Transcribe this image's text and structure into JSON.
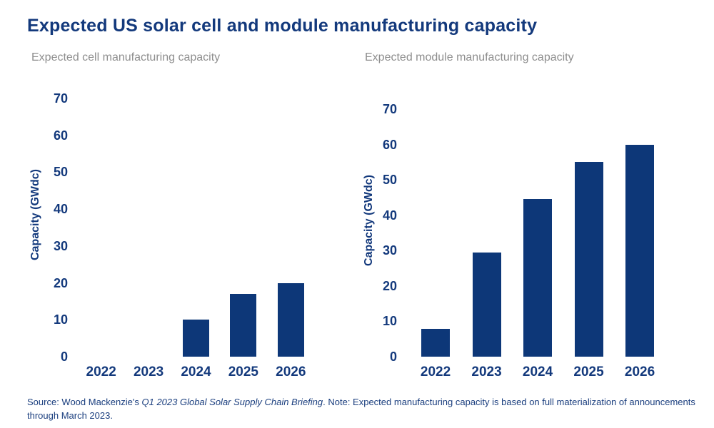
{
  "title": "Expected US solar cell and module manufacturing capacity",
  "colors": {
    "navy": "#13397C",
    "bar": "#0D3778",
    "subtitle_gray": "#8E8E8E"
  },
  "footer": {
    "source_prefix": "Source: Wood Mackenzie's ",
    "source_italic": "Q1 2023 Global Solar Supply Chain Briefing",
    "source_suffix": ". Note: Expected manufacturing capacity is based on full materialization of announcements through March 2023."
  },
  "chart_data": [
    {
      "type": "bar",
      "title": "Expected cell manufacturing capacity",
      "categories": [
        "2022",
        "2023",
        "2024",
        "2025",
        "2026"
      ],
      "values": [
        0,
        0,
        10,
        17,
        20
      ],
      "xlabel": "",
      "ylabel": "Capacity (GWdc)",
      "ylim": [
        0,
        70
      ],
      "ytick_step": 10,
      "grid": false,
      "legend": "none",
      "bar_color": "#0D3778"
    },
    {
      "type": "bar",
      "title": "Expected module manufacturing capacity",
      "categories": [
        "2022",
        "2023",
        "2024",
        "2025",
        "2026"
      ],
      "values": [
        7.8,
        29.5,
        44.5,
        55,
        60
      ],
      "xlabel": "",
      "ylabel": "Capacity (GWdc)",
      "ylim": [
        0,
        70
      ],
      "ytick_step": 10,
      "grid": false,
      "legend": "none",
      "bar_color": "#0D3778"
    }
  ]
}
